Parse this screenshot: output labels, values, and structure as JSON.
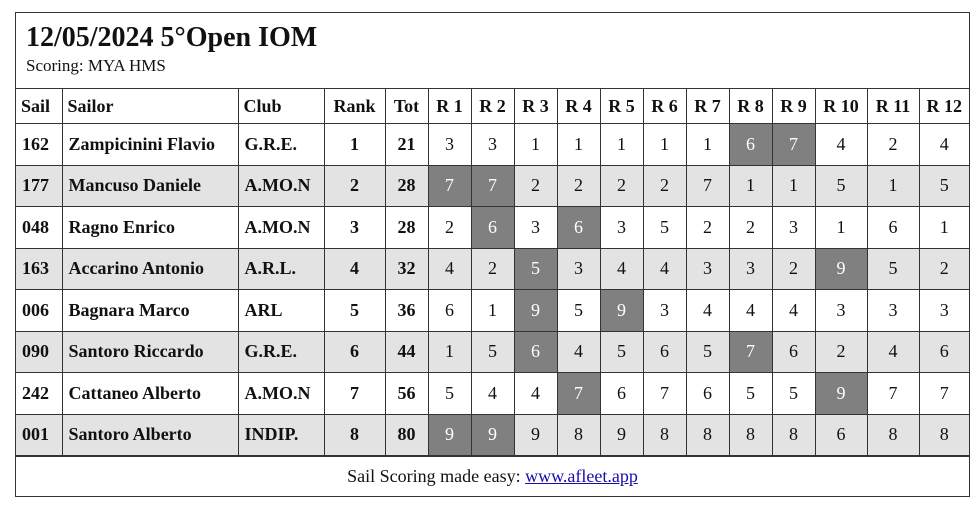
{
  "header": {
    "title": "12/05/2024 5°Open IOM",
    "scoring": "Scoring: MYA HMS"
  },
  "columns": [
    "Sail",
    "Sailor",
    "Club",
    "Rank",
    "Tot",
    "R 1",
    "R 2",
    "R 3",
    "R 4",
    "R 5",
    "R 6",
    "R 7",
    "R 8",
    "R 9",
    "R 10",
    "R 11",
    "R 12"
  ],
  "rows": [
    {
      "sail": "162",
      "sailor": "Zampicinini Flavio",
      "club": "G.R.E.",
      "rank": "1",
      "tot": "21",
      "races": [
        "3",
        "3",
        "1",
        "1",
        "1",
        "1",
        "1",
        "6",
        "7",
        "4",
        "2",
        "4"
      ],
      "discards": [
        7,
        8
      ]
    },
    {
      "sail": "177",
      "sailor": "Mancuso Daniele",
      "club": "A.MO.N",
      "rank": "2",
      "tot": "28",
      "races": [
        "7",
        "7",
        "2",
        "2",
        "2",
        "2",
        "7",
        "1",
        "1",
        "5",
        "1",
        "5"
      ],
      "discards": [
        0,
        1
      ]
    },
    {
      "sail": "048",
      "sailor": "Ragno Enrico",
      "club": "A.MO.N",
      "rank": "3",
      "tot": "28",
      "races": [
        "2",
        "6",
        "3",
        "6",
        "3",
        "5",
        "2",
        "2",
        "3",
        "1",
        "6",
        "1"
      ],
      "discards": [
        1,
        3
      ]
    },
    {
      "sail": "163",
      "sailor": "Accarino Antonio",
      "club": "A.R.L.",
      "rank": "4",
      "tot": "32",
      "races": [
        "4",
        "2",
        "5",
        "3",
        "4",
        "4",
        "3",
        "3",
        "2",
        "9",
        "5",
        "2"
      ],
      "discards": [
        2,
        9
      ]
    },
    {
      "sail": "006",
      "sailor": "Bagnara Marco",
      "club": "ARL",
      "rank": "5",
      "tot": "36",
      "races": [
        "6",
        "1",
        "9",
        "5",
        "9",
        "3",
        "4",
        "4",
        "4",
        "3",
        "3",
        "3"
      ],
      "discards": [
        2,
        4
      ]
    },
    {
      "sail": "090",
      "sailor": "Santoro Riccardo",
      "club": "G.R.E.",
      "rank": "6",
      "tot": "44",
      "races": [
        "1",
        "5",
        "6",
        "4",
        "5",
        "6",
        "5",
        "7",
        "6",
        "2",
        "4",
        "6"
      ],
      "discards": [
        2,
        7
      ]
    },
    {
      "sail": "242",
      "sailor": "Cattaneo Alberto",
      "club": "A.MO.N",
      "rank": "7",
      "tot": "56",
      "races": [
        "5",
        "4",
        "4",
        "7",
        "6",
        "7",
        "6",
        "5",
        "5",
        "9",
        "7",
        "7"
      ],
      "discards": [
        3,
        9
      ]
    },
    {
      "sail": "001",
      "sailor": "Santoro Alberto",
      "club": "INDIP.",
      "rank": "8",
      "tot": "80",
      "races": [
        "9",
        "9",
        "9",
        "8",
        "9",
        "8",
        "8",
        "8",
        "8",
        "6",
        "8",
        "8"
      ],
      "discards": [
        0,
        1
      ]
    }
  ],
  "footer": {
    "text": "Sail Scoring made easy: ",
    "link_text": "www.afleet.app"
  },
  "colors": {
    "discard_bg": "#808080",
    "alt_row_bg": "#e3e3e3",
    "link": "#1a0dab"
  }
}
